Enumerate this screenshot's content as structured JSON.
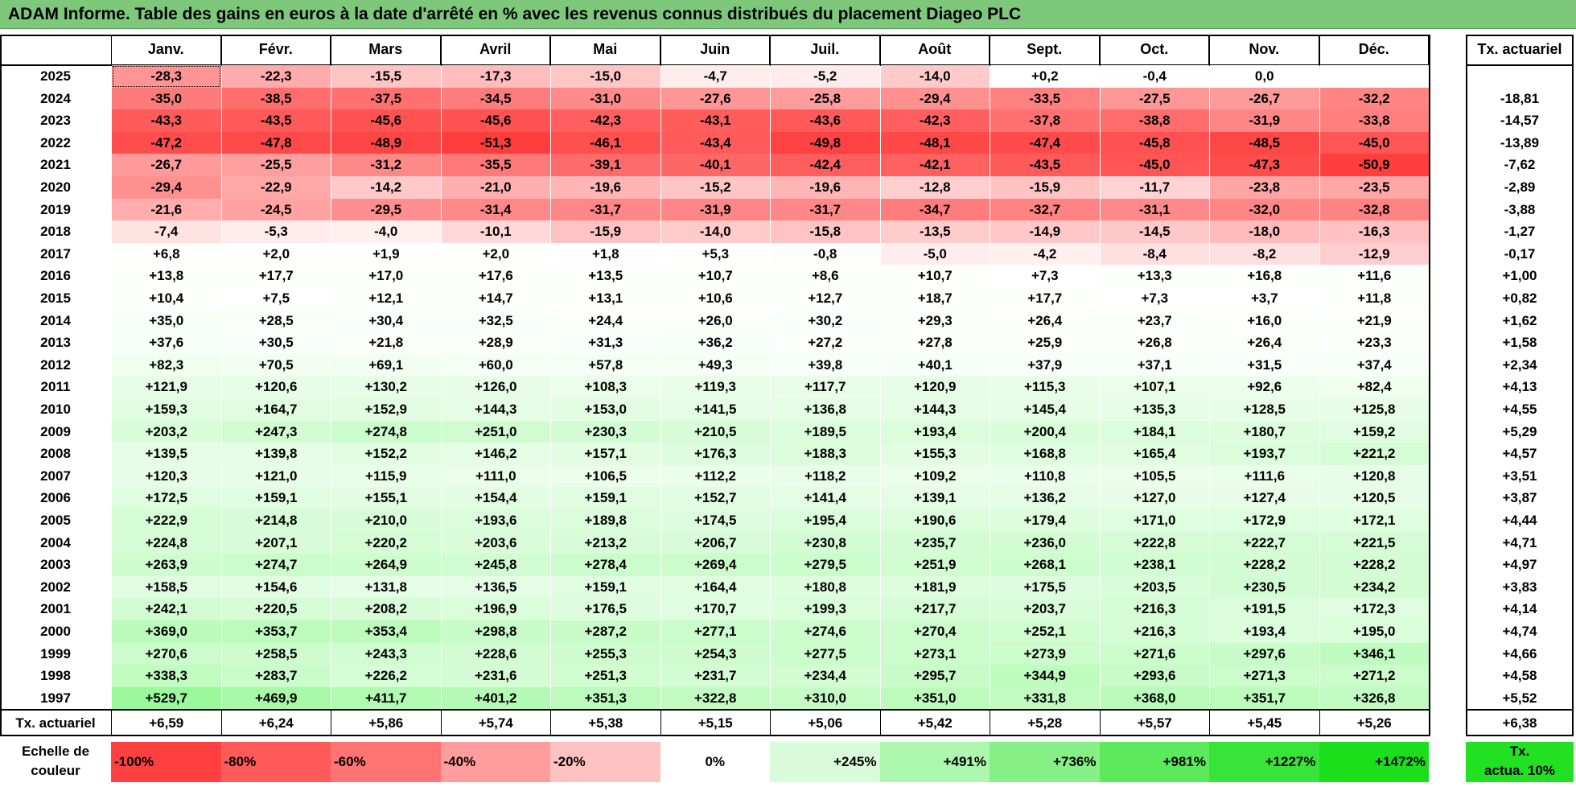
{
  "title": "ADAM Informe. Table des gains en euros à la date d'arrêté en % avec les revenus connus distribués du placement Diageo PLC",
  "months": [
    "Janv.",
    "Févr.",
    "Mars",
    "Avril",
    "Mai",
    "Juin",
    "Juil.",
    "Août",
    "Sept.",
    "Oct.",
    "Nov.",
    "Déc."
  ],
  "tx_header": "Tx. actuariel",
  "rows": [
    {
      "year": "2025",
      "values": [
        "-28,3",
        "-22,3",
        "-15,5",
        "-17,3",
        "-15,0",
        "-4,7",
        "-5,2",
        "-14,0",
        "+0,2",
        "-0,4",
        "0,0",
        ""
      ],
      "tx": ""
    },
    {
      "year": "2024",
      "values": [
        "-35,0",
        "-38,5",
        "-37,5",
        "-34,5",
        "-31,0",
        "-27,6",
        "-25,8",
        "-29,4",
        "-33,5",
        "-27,5",
        "-26,7",
        "-32,2"
      ],
      "tx": "-18,81"
    },
    {
      "year": "2023",
      "values": [
        "-43,3",
        "-43,5",
        "-45,6",
        "-45,6",
        "-42,3",
        "-43,1",
        "-43,6",
        "-42,3",
        "-37,8",
        "-38,8",
        "-31,9",
        "-33,8"
      ],
      "tx": "-14,57"
    },
    {
      "year": "2022",
      "values": [
        "-47,2",
        "-47,8",
        "-48,9",
        "-51,3",
        "-46,1",
        "-43,4",
        "-49,8",
        "-48,1",
        "-47,4",
        "-45,8",
        "-48,5",
        "-45,0"
      ],
      "tx": "-13,89"
    },
    {
      "year": "2021",
      "values": [
        "-26,7",
        "-25,5",
        "-31,2",
        "-35,5",
        "-39,1",
        "-40,1",
        "-42,4",
        "-42,1",
        "-43,5",
        "-45,0",
        "-47,3",
        "-50,9"
      ],
      "tx": "-7,62"
    },
    {
      "year": "2020",
      "values": [
        "-29,4",
        "-22,9",
        "-14,2",
        "-21,0",
        "-19,6",
        "-15,2",
        "-19,6",
        "-12,8",
        "-15,9",
        "-11,7",
        "-23,8",
        "-23,5"
      ],
      "tx": "-2,89"
    },
    {
      "year": "2019",
      "values": [
        "-21,6",
        "-24,5",
        "-29,5",
        "-31,4",
        "-31,7",
        "-31,9",
        "-31,7",
        "-34,7",
        "-32,7",
        "-31,1",
        "-32,0",
        "-32,8"
      ],
      "tx": "-3,88"
    },
    {
      "year": "2018",
      "values": [
        "-7,4",
        "-5,3",
        "-4,0",
        "-10,1",
        "-15,9",
        "-14,0",
        "-15,8",
        "-13,5",
        "-14,9",
        "-14,5",
        "-18,0",
        "-16,3"
      ],
      "tx": "-1,27"
    },
    {
      "year": "2017",
      "values": [
        "+6,8",
        "+2,0",
        "+1,9",
        "+2,0",
        "+1,8",
        "+5,3",
        "-0,8",
        "-5,0",
        "-4,2",
        "-8,4",
        "-8,2",
        "-12,9"
      ],
      "tx": "-0,17"
    },
    {
      "year": "2016",
      "values": [
        "+13,8",
        "+17,7",
        "+17,0",
        "+17,6",
        "+13,5",
        "+10,7",
        "+8,6",
        "+10,7",
        "+7,3",
        "+13,3",
        "+16,8",
        "+11,6"
      ],
      "tx": "+1,00"
    },
    {
      "year": "2015",
      "values": [
        "+10,4",
        "+7,5",
        "+12,1",
        "+14,7",
        "+13,1",
        "+10,6",
        "+12,7",
        "+18,7",
        "+17,7",
        "+7,3",
        "+3,7",
        "+11,8"
      ],
      "tx": "+0,82"
    },
    {
      "year": "2014",
      "values": [
        "+35,0",
        "+28,5",
        "+30,4",
        "+32,5",
        "+24,4",
        "+26,0",
        "+30,2",
        "+29,3",
        "+26,4",
        "+23,7",
        "+16,0",
        "+21,9"
      ],
      "tx": "+1,62"
    },
    {
      "year": "2013",
      "values": [
        "+37,6",
        "+30,5",
        "+21,8",
        "+28,9",
        "+31,3",
        "+36,2",
        "+27,2",
        "+27,8",
        "+25,9",
        "+26,8",
        "+26,4",
        "+23,3"
      ],
      "tx": "+1,58"
    },
    {
      "year": "2012",
      "values": [
        "+82,3",
        "+70,5",
        "+69,1",
        "+60,0",
        "+57,8",
        "+49,3",
        "+39,8",
        "+40,1",
        "+37,9",
        "+37,1",
        "+31,5",
        "+37,4"
      ],
      "tx": "+2,34"
    },
    {
      "year": "2011",
      "values": [
        "+121,9",
        "+120,6",
        "+130,2",
        "+126,0",
        "+108,3",
        "+119,3",
        "+117,7",
        "+120,9",
        "+115,3",
        "+107,1",
        "+92,6",
        "+82,4"
      ],
      "tx": "+4,13"
    },
    {
      "year": "2010",
      "values": [
        "+159,3",
        "+164,7",
        "+152,9",
        "+144,3",
        "+153,0",
        "+141,5",
        "+136,8",
        "+144,3",
        "+145,4",
        "+135,3",
        "+128,5",
        "+125,8"
      ],
      "tx": "+4,55"
    },
    {
      "year": "2009",
      "values": [
        "+203,2",
        "+247,3",
        "+274,8",
        "+251,0",
        "+230,3",
        "+210,5",
        "+189,5",
        "+193,4",
        "+200,4",
        "+184,1",
        "+180,7",
        "+159,2"
      ],
      "tx": "+5,29"
    },
    {
      "year": "2008",
      "values": [
        "+139,5",
        "+139,8",
        "+152,2",
        "+146,2",
        "+157,1",
        "+176,3",
        "+188,3",
        "+155,3",
        "+168,8",
        "+165,4",
        "+193,7",
        "+221,2"
      ],
      "tx": "+4,57"
    },
    {
      "year": "2007",
      "values": [
        "+120,3",
        "+121,0",
        "+115,9",
        "+111,0",
        "+106,5",
        "+112,2",
        "+118,2",
        "+109,2",
        "+110,8",
        "+105,5",
        "+111,6",
        "+120,8"
      ],
      "tx": "+3,51"
    },
    {
      "year": "2006",
      "values": [
        "+172,5",
        "+159,1",
        "+155,1",
        "+154,4",
        "+159,1",
        "+152,7",
        "+141,4",
        "+139,1",
        "+136,2",
        "+127,0",
        "+127,4",
        "+120,5"
      ],
      "tx": "+3,87"
    },
    {
      "year": "2005",
      "values": [
        "+222,9",
        "+214,8",
        "+210,0",
        "+193,6",
        "+189,8",
        "+174,5",
        "+195,4",
        "+190,6",
        "+179,4",
        "+171,0",
        "+172,9",
        "+172,1"
      ],
      "tx": "+4,44"
    },
    {
      "year": "2004",
      "values": [
        "+224,8",
        "+207,1",
        "+220,2",
        "+203,6",
        "+213,2",
        "+206,7",
        "+230,8",
        "+235,7",
        "+236,0",
        "+222,8",
        "+222,7",
        "+221,5"
      ],
      "tx": "+4,71"
    },
    {
      "year": "2003",
      "values": [
        "+263,9",
        "+274,7",
        "+264,9",
        "+245,8",
        "+278,4",
        "+269,4",
        "+279,5",
        "+251,9",
        "+268,1",
        "+238,1",
        "+228,2",
        "+228,2"
      ],
      "tx": "+4,97"
    },
    {
      "year": "2002",
      "values": [
        "+158,5",
        "+154,6",
        "+131,8",
        "+136,5",
        "+159,1",
        "+164,4",
        "+180,8",
        "+181,9",
        "+175,5",
        "+203,5",
        "+230,5",
        "+234,2"
      ],
      "tx": "+3,83"
    },
    {
      "year": "2001",
      "values": [
        "+242,1",
        "+220,5",
        "+208,2",
        "+196,9",
        "+176,5",
        "+170,7",
        "+199,3",
        "+217,7",
        "+203,7",
        "+216,3",
        "+191,5",
        "+172,3"
      ],
      "tx": "+4,14"
    },
    {
      "year": "2000",
      "values": [
        "+369,0",
        "+353,7",
        "+353,4",
        "+298,8",
        "+287,2",
        "+277,1",
        "+274,6",
        "+270,4",
        "+252,1",
        "+216,3",
        "+193,4",
        "+195,0"
      ],
      "tx": "+4,74"
    },
    {
      "year": "1999",
      "values": [
        "+270,6",
        "+258,5",
        "+243,3",
        "+228,6",
        "+255,3",
        "+254,3",
        "+277,5",
        "+273,1",
        "+273,9",
        "+271,6",
        "+297,6",
        "+346,1"
      ],
      "tx": "+4,66"
    },
    {
      "year": "1998",
      "values": [
        "+338,3",
        "+283,7",
        "+226,2",
        "+231,6",
        "+251,3",
        "+231,7",
        "+234,4",
        "+295,7",
        "+344,9",
        "+293,6",
        "+271,3",
        "+271,2"
      ],
      "tx": "+4,58"
    },
    {
      "year": "1997",
      "values": [
        "+529,7",
        "+469,9",
        "+411,7",
        "+401,2",
        "+351,3",
        "+322,8",
        "+310,0",
        "+351,0",
        "+331,8",
        "+368,0",
        "+351,7",
        "+326,8"
      ],
      "tx": "+5,52"
    }
  ],
  "footer": {
    "label": "Tx. actuariel",
    "values": [
      "+6,59",
      "+6,24",
      "+5,86",
      "+5,74",
      "+5,38",
      "+5,15",
      "+5,06",
      "+5,42",
      "+5,28",
      "+5,57",
      "+5,45",
      "+5,26"
    ],
    "tx": "+6,38"
  },
  "scale": {
    "label_line1": "Echelle de",
    "label_line2": "couleur",
    "items": [
      {
        "text": "-100%",
        "color": "#ff4040",
        "align": "left"
      },
      {
        "text": "-80%",
        "color": "#ff5a5a",
        "align": "left"
      },
      {
        "text": "-60%",
        "color": "#ff7373",
        "align": "left"
      },
      {
        "text": "-40%",
        "color": "#ff9c9c",
        "align": "left"
      },
      {
        "text": "-20%",
        "color": "#ffc2c2",
        "align": "left"
      },
      {
        "text": "0%",
        "color": "#ffffff",
        "align": "center"
      },
      {
        "text": "+245%",
        "color": "#d9fbd9",
        "align": "right"
      },
      {
        "text": "+491%",
        "color": "#aef7ae",
        "align": "right"
      },
      {
        "text": "+736%",
        "color": "#86f086",
        "align": "right"
      },
      {
        "text": "+981%",
        "color": "#5cea5c",
        "align": "right"
      },
      {
        "text": "+1227%",
        "color": "#38e438",
        "align": "right"
      },
      {
        "text": "+1472%",
        "color": "#1adf1a",
        "align": "right"
      }
    ],
    "tx_line1": "Tx.",
    "tx_line2": "actua. 10%",
    "tx_color": "#22e022"
  },
  "colors": {
    "title_bg": "#7dc87b",
    "negative_max": "#ff3b3b",
    "positive_max": "#33e333",
    "neutral": "#ffffff"
  }
}
